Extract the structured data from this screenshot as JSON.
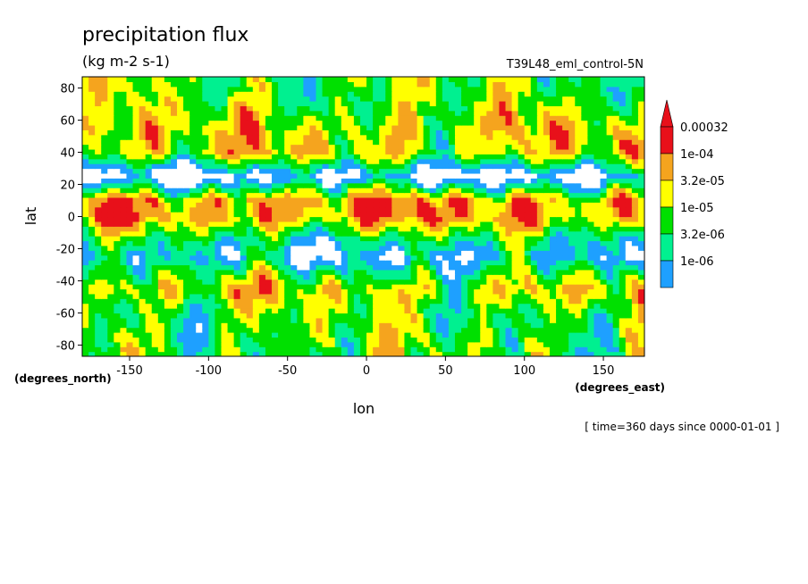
{
  "chart_data": {
    "type": "heatmap",
    "title": "precipitation flux",
    "units": "(kg m-2 s-1)",
    "run_label": "T39L48_eml_control-5N",
    "xlabel": "lon",
    "ylabel": "lat",
    "x_units_label": "(degrees_east)",
    "y_units_label": "(degrees_north)",
    "footer": "[ time=360 days since 0000-01-01 ]",
    "xlim": [
      -180,
      176
    ],
    "ylim": [
      -87,
      87
    ],
    "x_ticks": [
      -150,
      -100,
      -50,
      0,
      50,
      100,
      150
    ],
    "y_ticks": [
      -80,
      -60,
      -40,
      -20,
      0,
      20,
      40,
      60,
      80
    ],
    "x_tick_labels": [
      "-150",
      "-100",
      "-50",
      "0",
      "50",
      "100",
      "150"
    ],
    "y_tick_labels": [
      "-80",
      "-60",
      "-40",
      "-20",
      "0",
      "20",
      "40",
      "60",
      "80"
    ],
    "legend_labels": [
      "0.00032",
      "1e-04",
      "3.2e-05",
      "1e-05",
      "3.2e-06",
      "1e-06"
    ],
    "legend_colors": [
      "#e8101a",
      "#f5a41e",
      "#ffff00",
      "#00e000",
      "#00f090",
      "#1ea0ff"
    ],
    "below_min_color": "#ffffff",
    "levels": [
      1e-06,
      3.2e-06,
      1e-05,
      3.2e-05,
      0.0001,
      0.00032
    ],
    "zonal_pattern": [
      {
        "lat": -85,
        "class": 3
      },
      {
        "lat": -60,
        "class": 3
      },
      {
        "lat": -45,
        "class": 4
      },
      {
        "lat": -25,
        "class": 1
      },
      {
        "lat": -15,
        "class": 2
      },
      {
        "lat": 0,
        "class": 5
      },
      {
        "lat": 10,
        "class": 5
      },
      {
        "lat": 25,
        "class": 0
      },
      {
        "lat": 40,
        "class": 4
      },
      {
        "lat": 55,
        "class": 4
      },
      {
        "lat": 75,
        "class": 3
      }
    ]
  }
}
